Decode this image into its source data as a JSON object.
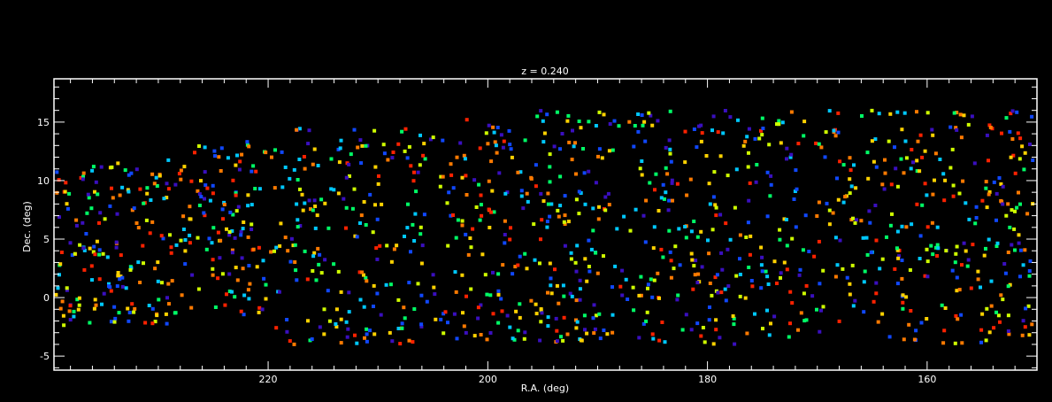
{
  "chart_data": {
    "type": "scatter",
    "title": "z = 0.240",
    "xlabel": "R.A. (deg)",
    "ylabel": "Dec. (deg)",
    "xlim": [
      239.5,
      150
    ],
    "ylim": [
      -6.2,
      18.7
    ],
    "x_reversed": true,
    "xticks": [
      220,
      200,
      180,
      160
    ],
    "xtick_labels": [
      "220",
      "200",
      "180",
      "160"
    ],
    "yticks": [
      -5,
      0,
      5,
      10,
      15
    ],
    "ytick_labels": [
      "-5",
      "0",
      "5",
      "10",
      "15"
    ],
    "grid": false,
    "legend": "none",
    "background": "#000000",
    "axis_color": "#ffffff",
    "palette": [
      "#3a0fbf",
      "#1048ff",
      "#00c8ff",
      "#00ff66",
      "#cfff00",
      "#ffd200",
      "#ff7a00",
      "#ff2200"
    ],
    "point_count_approx": 1400,
    "data_note_x_range": [
      150,
      239.5
    ],
    "data_note_y_range": [
      -4,
      16
    ]
  }
}
